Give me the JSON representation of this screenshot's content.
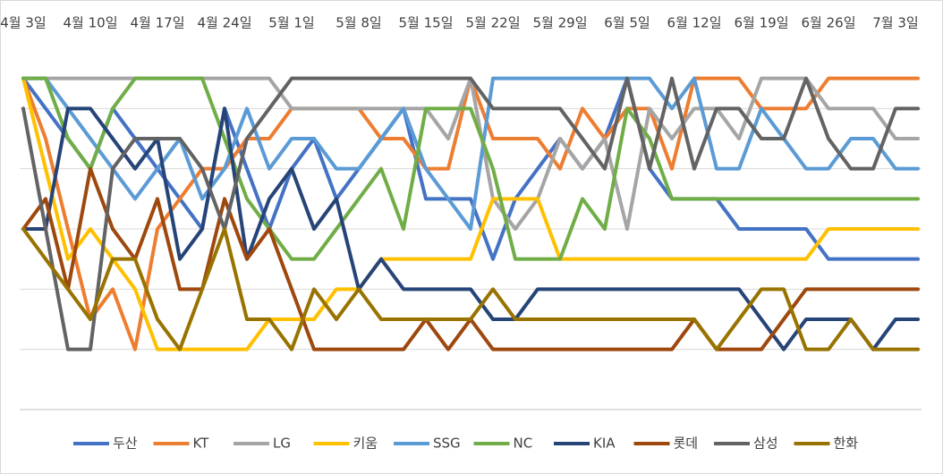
{
  "chart_data": {
    "type": "line",
    "categories": [
      "4월 3일",
      null,
      null,
      "4월 10일",
      null,
      null,
      "4월 17일",
      null,
      null,
      "4월 24일",
      null,
      null,
      "5월 1일",
      null,
      null,
      "5월 8일",
      null,
      null,
      "5월 15일",
      null,
      null,
      "5월 22일",
      null,
      null,
      "5월 29일",
      null,
      null,
      "6월 5일",
      null,
      null,
      "6월 12일",
      null,
      null,
      "6월 19일",
      null,
      null,
      "6월 26일",
      null,
      null,
      "7월 3일",
      null
    ],
    "series": [
      {
        "name": "두산",
        "color": "#4472C4",
        "values": [
          1,
          2,
          3,
          4,
          2,
          3,
          4,
          5,
          6,
          2,
          4,
          6,
          4,
          3,
          5,
          4,
          3,
          2,
          5,
          5,
          5,
          7,
          5,
          4,
          3,
          4,
          3,
          1,
          4,
          5,
          5,
          5,
          6,
          6,
          6,
          6,
          7,
          7,
          7,
          7,
          7
        ]
      },
      {
        "name": "KT",
        "color": "#ED7D31",
        "values": [
          1,
          3,
          6,
          9,
          8,
          10,
          6,
          5,
          4,
          4,
          3,
          3,
          2,
          2,
          2,
          2,
          3,
          3,
          4,
          4,
          1,
          3,
          3,
          3,
          4,
          2,
          3,
          2,
          2,
          4,
          1,
          1,
          1,
          2,
          2,
          2,
          1,
          1,
          1,
          1,
          1
        ]
      },
      {
        "name": "LG",
        "color": "#A5A5A5",
        "values": [
          1,
          1,
          1,
          1,
          1,
          1,
          1,
          1,
          1,
          1,
          1,
          1,
          2,
          2,
          2,
          2,
          2,
          2,
          2,
          3,
          1,
          5,
          6,
          5,
          3,
          4,
          3,
          6,
          2,
          3,
          2,
          2,
          3,
          1,
          1,
          1,
          2,
          2,
          2,
          3,
          3
        ]
      },
      {
        "name": "키움",
        "color": "#FFC000",
        "values": [
          1,
          4,
          7,
          6,
          7,
          8,
          10,
          10,
          10,
          10,
          10,
          9,
          9,
          9,
          8,
          8,
          7,
          7,
          7,
          7,
          7,
          5,
          5,
          5,
          7,
          7,
          7,
          7,
          7,
          7,
          7,
          7,
          7,
          7,
          7,
          7,
          6,
          6,
          6,
          6,
          6
        ]
      },
      {
        "name": "SSG",
        "color": "#5B9BD5",
        "values": [
          1,
          1,
          2,
          3,
          4,
          5,
          4,
          3,
          5,
          4,
          2,
          4,
          3,
          3,
          4,
          4,
          3,
          2,
          4,
          5,
          6,
          1,
          1,
          1,
          1,
          1,
          1,
          1,
          1,
          2,
          1,
          4,
          4,
          2,
          3,
          4,
          4,
          3,
          3,
          4,
          4
        ]
      },
      {
        "name": "NC",
        "color": "#70AD47",
        "values": [
          1,
          1,
          3,
          4,
          2,
          1,
          1,
          1,
          1,
          3,
          5,
          6,
          7,
          7,
          6,
          5,
          4,
          6,
          2,
          2,
          2,
          4,
          7,
          7,
          7,
          5,
          6,
          2,
          3,
          5,
          5,
          5,
          5,
          5,
          5,
          5,
          5,
          5,
          5,
          5,
          5
        ]
      },
      {
        "name": "KIA",
        "color": "#264478",
        "values": [
          6,
          6,
          2,
          2,
          3,
          4,
          3,
          7,
          6,
          2,
          7,
          5,
          4,
          6,
          5,
          8,
          7,
          8,
          8,
          8,
          8,
          9,
          9,
          8,
          8,
          8,
          8,
          8,
          8,
          8,
          8,
          8,
          8,
          9,
          10,
          9,
          9,
          9,
          10,
          9,
          9
        ]
      },
      {
        "name": "롯데",
        "color": "#9E480E",
        "values": [
          6,
          5,
          8,
          4,
          6,
          7,
          5,
          8,
          8,
          5,
          7,
          6,
          8,
          10,
          10,
          10,
          10,
          10,
          9,
          10,
          9,
          10,
          10,
          10,
          10,
          10,
          10,
          10,
          10,
          10,
          9,
          10,
          10,
          10,
          9,
          8,
          8,
          8,
          8,
          8,
          8
        ]
      },
      {
        "name": "삼성",
        "color": "#636363",
        "values": [
          2,
          6,
          10,
          10,
          4,
          3,
          3,
          3,
          4,
          6,
          3,
          2,
          1,
          1,
          1,
          1,
          1,
          1,
          1,
          1,
          1,
          2,
          2,
          2,
          2,
          3,
          4,
          1,
          4,
          1,
          4,
          2,
          2,
          3,
          3,
          1,
          3,
          4,
          4,
          2,
          2
        ]
      },
      {
        "name": "한화",
        "color": "#997300",
        "values": [
          6,
          7,
          8,
          9,
          7,
          7,
          9,
          10,
          8,
          6,
          9,
          9,
          10,
          8,
          9,
          8,
          9,
          9,
          9,
          9,
          9,
          8,
          9,
          9,
          9,
          9,
          9,
          9,
          9,
          9,
          9,
          10,
          9,
          8,
          8,
          10,
          10,
          9,
          10,
          10,
          10
        ]
      }
    ],
    "ylim": [
      0,
      12
    ],
    "y_inverted": true,
    "yticks": [
      2,
      4,
      6,
      8,
      10,
      12
    ],
    "grid": true,
    "legend": "bottom"
  }
}
